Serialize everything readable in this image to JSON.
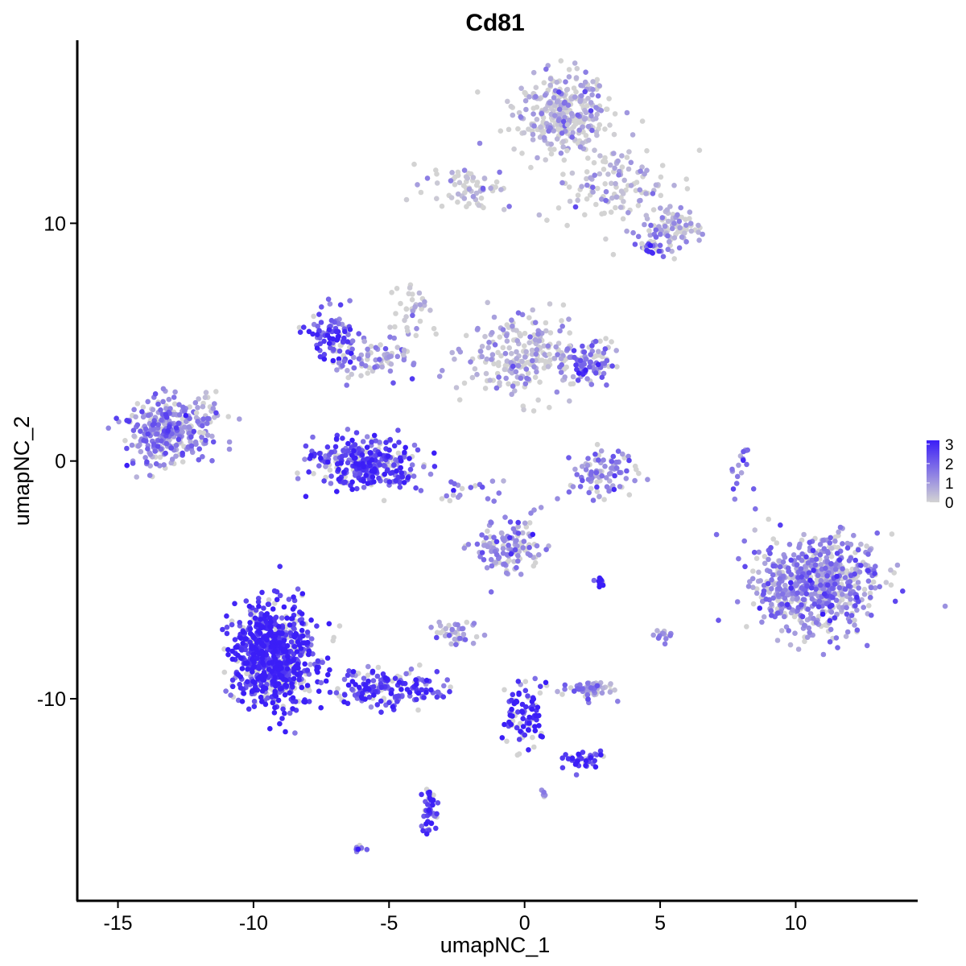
{
  "chart_data": {
    "type": "scatter",
    "title": "Cd81",
    "xlabel": "umapNC_1",
    "ylabel": "umapNC_2",
    "xlim": [
      -16.5,
      14.5
    ],
    "ylim": [
      -18.5,
      17.7
    ],
    "x_ticks": [
      -15,
      -10,
      -5,
      0,
      5,
      10
    ],
    "x_tick_labels": [
      "-15",
      "-10",
      "-5",
      "0",
      "5",
      "10"
    ],
    "y_ticks": [
      10,
      0,
      -10
    ],
    "y_tick_labels": [
      "10",
      "0",
      "-10"
    ],
    "grid": false,
    "legend_position": "right",
    "color_scale": {
      "low": "#d3d3d3",
      "high": "#3b1ef7",
      "min": 0,
      "max": 3.2,
      "breaks": [
        3,
        2,
        1,
        0
      ],
      "break_labels": [
        "3",
        "2",
        "1",
        "0"
      ]
    },
    "clusters": [
      {
        "cx": 1.4,
        "cy": 14.6,
        "sx": 0.9,
        "sy": 0.8,
        "n": 320,
        "expr": 0.35
      },
      {
        "cx": 3.3,
        "cy": 11.6,
        "sx": 1.3,
        "sy": 1.0,
        "n": 130,
        "expr": 0.5
      },
      {
        "cx": 5.6,
        "cy": 9.8,
        "sx": 0.5,
        "sy": 0.4,
        "n": 80,
        "expr": 0.6
      },
      {
        "cx": 4.6,
        "cy": 9.0,
        "sx": 0.25,
        "sy": 0.25,
        "n": 25,
        "expr": 2.3
      },
      {
        "cx": -2.0,
        "cy": 11.4,
        "sx": 0.9,
        "sy": 0.5,
        "n": 70,
        "expr": 0.25
      },
      {
        "cx": -0.2,
        "cy": 4.5,
        "sx": 1.0,
        "sy": 0.9,
        "n": 220,
        "expr": 0.45
      },
      {
        "cx": 2.2,
        "cy": 4.1,
        "sx": 0.6,
        "sy": 0.5,
        "n": 100,
        "expr": 1.5
      },
      {
        "cx": -7.0,
        "cy": 5.3,
        "sx": 0.5,
        "sy": 0.6,
        "n": 90,
        "expr": 2.4
      },
      {
        "cx": -5.5,
        "cy": 4.3,
        "sx": 0.9,
        "sy": 0.6,
        "n": 70,
        "expr": 1.2
      },
      {
        "cx": -13.2,
        "cy": 1.2,
        "sx": 0.7,
        "sy": 0.7,
        "n": 300,
        "expr": 1.4
      },
      {
        "cx": -11.7,
        "cy": 2.0,
        "sx": 0.3,
        "sy": 0.5,
        "n": 30,
        "expr": 0.9
      },
      {
        "cx": -5.8,
        "cy": -0.1,
        "sx": 1.0,
        "sy": 0.5,
        "n": 320,
        "expr": 2.5
      },
      {
        "cx": 2.9,
        "cy": -0.6,
        "sx": 0.7,
        "sy": 0.5,
        "n": 90,
        "expr": 1.3
      },
      {
        "cx": 8.0,
        "cy": -0.2,
        "sx": 0.2,
        "sy": 0.6,
        "n": 18,
        "expr": 1.5
      },
      {
        "cx": 10.8,
        "cy": -5.2,
        "sx": 1.1,
        "sy": 1.0,
        "n": 700,
        "expr": 1.2
      },
      {
        "cx": -0.6,
        "cy": -3.7,
        "sx": 0.6,
        "sy": 0.6,
        "n": 130,
        "expr": 1.2
      },
      {
        "cx": -2.6,
        "cy": -7.2,
        "sx": 0.4,
        "sy": 0.3,
        "n": 40,
        "expr": 0.7
      },
      {
        "cx": 2.3,
        "cy": -9.6,
        "sx": 0.5,
        "sy": 0.2,
        "n": 60,
        "expr": 1.2
      },
      {
        "cx": -9.3,
        "cy": -8.2,
        "sx": 0.75,
        "sy": 1.05,
        "n": 800,
        "expr": 2.8
      },
      {
        "cx": -5.0,
        "cy": -9.6,
        "sx": 1.0,
        "sy": 0.4,
        "n": 170,
        "expr": 2.6
      },
      {
        "cx": -0.1,
        "cy": -10.8,
        "sx": 0.35,
        "sy": 0.75,
        "n": 90,
        "expr": 3.0
      },
      {
        "cx": 2.1,
        "cy": -12.6,
        "sx": 0.35,
        "sy": 0.2,
        "n": 40,
        "expr": 2.8
      },
      {
        "cx": -3.5,
        "cy": -14.7,
        "sx": 0.15,
        "sy": 0.6,
        "n": 45,
        "expr": 2.6
      },
      {
        "cx": 2.8,
        "cy": -5.1,
        "sx": 0.1,
        "sy": 0.1,
        "n": 10,
        "expr": 3.1
      },
      {
        "cx": 5.1,
        "cy": -7.3,
        "sx": 0.2,
        "sy": 0.15,
        "n": 14,
        "expr": 1.2
      },
      {
        "cx": -6.1,
        "cy": -16.3,
        "sx": 0.1,
        "sy": 0.1,
        "n": 8,
        "expr": 1.8
      },
      {
        "cx": -4.2,
        "cy": 6.5,
        "sx": 0.3,
        "sy": 0.8,
        "n": 35,
        "expr": 0.2
      },
      {
        "cx": -2.2,
        "cy": -1.2,
        "sx": 0.6,
        "sy": 0.3,
        "n": 20,
        "expr": 1.5
      },
      {
        "cx": 0.7,
        "cy": -14.0,
        "sx": 0.1,
        "sy": 0.1,
        "n": 5,
        "expr": 1.5
      }
    ]
  }
}
